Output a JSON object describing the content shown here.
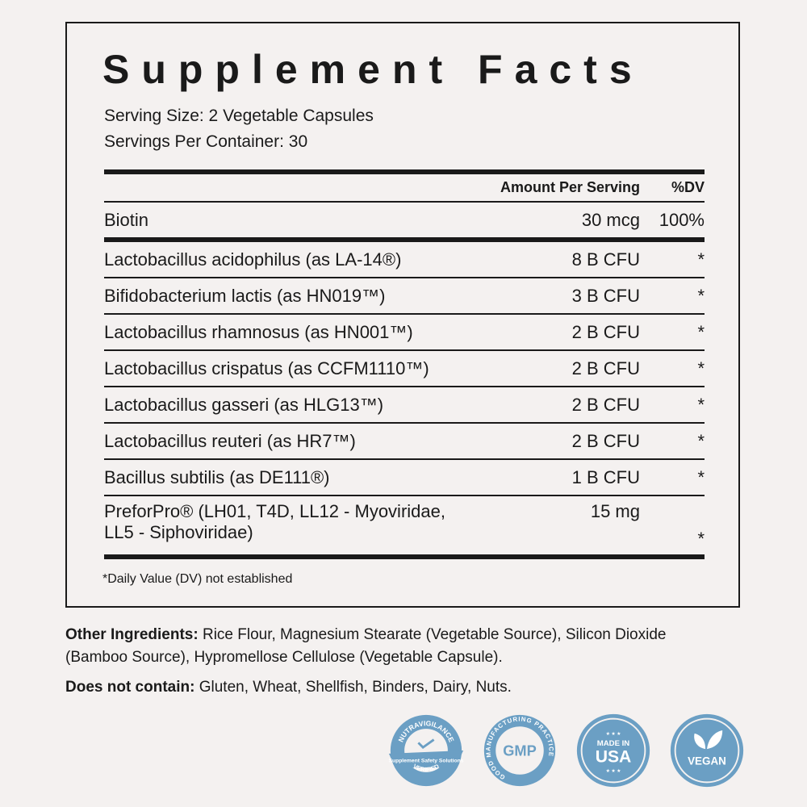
{
  "title": "Supplement Facts",
  "serving_size": "Serving Size: 2 Vegetable Capsules",
  "servings_per_container": "Servings Per Container: 30",
  "header": {
    "amount": "Amount Per Serving",
    "dv": "%DV"
  },
  "rows": [
    {
      "name": "Biotin",
      "amount": "30 mcg",
      "dv": "100%"
    },
    {
      "name": "Lactobacillus acidophilus (as LA-14®)",
      "amount": "8 B CFU",
      "dv": "*"
    },
    {
      "name": "Bifidobacterium lactis (as HN019™)",
      "amount": "3 B CFU",
      "dv": "*"
    },
    {
      "name": "Lactobacillus rhamnosus  (as HN001™)",
      "amount": "2 B CFU",
      "dv": "*"
    },
    {
      "name": "Lactobacillus crispatus (as CCFM1110™)",
      "amount": "2 B CFU",
      "dv": "*"
    },
    {
      "name": "Lactobacillus gasseri (as HLG13™)",
      "amount": "2 B CFU",
      "dv": "*"
    },
    {
      "name": "Lactobacillus reuteri (as HR7™)",
      "amount": "2 B CFU",
      "dv": "*"
    },
    {
      "name": "Bacillus subtilis (as DE111®)",
      "amount": "1 B CFU",
      "dv": "*"
    },
    {
      "name_line1": "PreforPro® (LH01, T4D, LL12 - Myoviridae,",
      "name_line2": "LL5 - Siphoviridae)",
      "amount": "15 mg",
      "dv": "*"
    }
  ],
  "footnote": "*Daily Value (DV) not established",
  "other_ingredients": {
    "label": "Other Ingredients:",
    "text": " Rice Flour, Magnesium Stearate (Vegetable Source), Silicon Dioxide (Bamboo Source), Hypromellose Cellulose (Vegetable Capsule)."
  },
  "does_not_contain": {
    "label": "Does not contain:",
    "text": " Gluten, Wheat, Shellfish, Binders, Dairy, Nuts."
  },
  "badges": {
    "color": "#6b9fc4",
    "nutravigilance": {
      "top": "NUTRAVIGILANCE",
      "middle": "Supplement Safety Solutions",
      "bottom": "VERIFIED"
    },
    "gmp": {
      "ring": "GOOD MANUFACTURING PRACTICE",
      "center": "GMP"
    },
    "usa": {
      "top": "MADE IN",
      "center": "USA"
    },
    "vegan": {
      "center": "VEGAN"
    }
  }
}
